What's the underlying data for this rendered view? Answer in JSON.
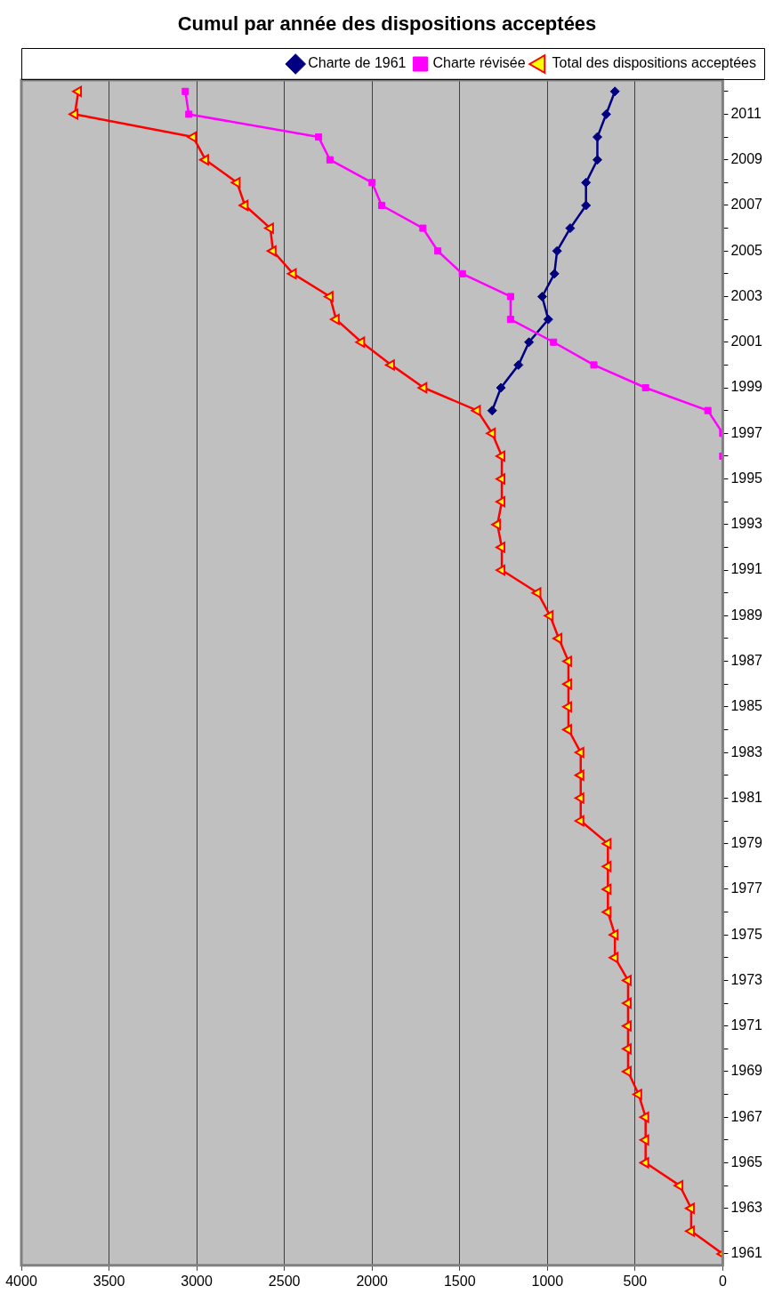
{
  "chart_data": {
    "type": "line",
    "title": "Cumul par année des dispositions acceptées",
    "orientation": "horizontal",
    "categories": [
      null,
      "2011",
      null,
      "2009",
      null,
      "2007",
      null,
      "2005",
      null,
      "2003",
      null,
      "2001",
      null,
      "1999",
      null,
      "1997",
      null,
      "1995",
      null,
      "1993",
      null,
      "1991",
      null,
      "1989",
      null,
      "1987",
      null,
      "1985",
      null,
      "1983",
      null,
      "1981",
      null,
      "1979",
      null,
      "1977",
      null,
      "1975",
      null,
      "1973",
      null,
      "1971",
      null,
      "1969",
      null,
      "1967",
      null,
      "1965",
      null,
      "1963",
      null,
      "1961"
    ],
    "series": [
      {
        "name": "Charte de 1961",
        "color": "#000080",
        "marker": "diamond",
        "values": [
          615,
          665,
          715,
          715,
          780,
          780,
          870,
          945,
          960,
          1030,
          995,
          1105,
          1165,
          1265,
          1315,
          null,
          null,
          null,
          null,
          null,
          null,
          null,
          null,
          null,
          null,
          null,
          null,
          null,
          null,
          null,
          null,
          null,
          null,
          null,
          null,
          null,
          null,
          null,
          null,
          null,
          null,
          null,
          null,
          null,
          null,
          null,
          null,
          null,
          null,
          null,
          null,
          null
        ]
      },
      {
        "name": "Charte révisée",
        "color": "#ff00ff",
        "marker": "square",
        "values": [
          3065,
          3045,
          2305,
          2240,
          2000,
          1945,
          1710,
          1625,
          1485,
          1210,
          1210,
          965,
          735,
          440,
          85,
          0,
          0,
          null,
          null,
          null,
          null,
          null,
          null,
          null,
          null,
          null,
          null,
          null,
          null,
          null,
          null,
          null,
          null,
          null,
          null,
          null,
          null,
          null,
          null,
          null,
          null,
          null,
          null,
          null,
          null,
          null,
          null,
          null,
          null,
          null,
          null,
          null
        ]
      },
      {
        "name": "Total des dispositions acceptées",
        "color": "#ff0000",
        "marker": "triangle",
        "values": [
          3675,
          3695,
          3020,
          2950,
          2770,
          2725,
          2580,
          2565,
          2450,
          2240,
          2205,
          2060,
          1890,
          1705,
          1400,
          1315,
          1260,
          1260,
          1260,
          1285,
          1260,
          1260,
          1055,
          985,
          935,
          880,
          880,
          880,
          880,
          810,
          810,
          810,
          810,
          655,
          655,
          655,
          655,
          615,
          615,
          540,
          540,
          540,
          540,
          540,
          480,
          440,
          440,
          440,
          245,
          180,
          180,
          0
        ]
      }
    ],
    "xlim": [
      4000,
      0
    ],
    "xticks": [
      4000,
      3500,
      3000,
      2500,
      2000,
      1500,
      1000,
      500,
      0
    ],
    "grid": "x",
    "legend": "top right"
  }
}
